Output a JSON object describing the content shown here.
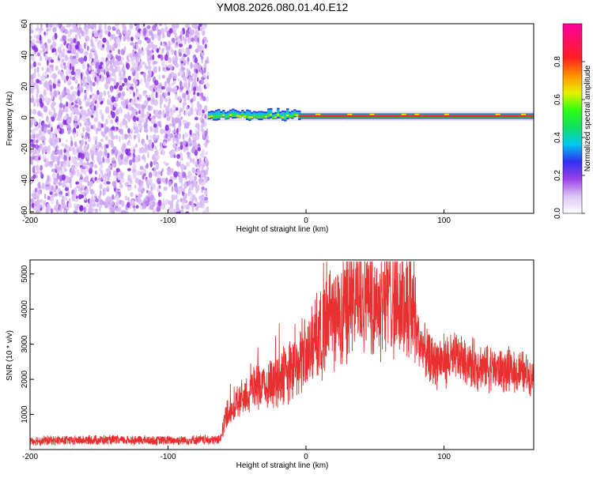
{
  "title": "YM08.2026.080.01.40.E12",
  "colors": {
    "snr_line": "#e83030",
    "noise_dark": "#8a2be2",
    "noise_light": "#d8b8f4"
  },
  "chart_data": [
    {
      "type": "heatmap",
      "title": "YM08.2026.080.01.40.E12",
      "xlabel": "Height of straight line (km)",
      "ylabel": "Frequency (Hz)",
      "xlim": [
        -200,
        165
      ],
      "ylim": [
        -61,
        60
      ],
      "xticks": [
        "-200",
        "-100",
        "0",
        "100"
      ],
      "xtick_values": [
        -200,
        -100,
        0,
        100
      ],
      "yticks": [
        "60",
        "40",
        "20",
        "0",
        "-20",
        "-40",
        "-60"
      ],
      "ytick_values": [
        60,
        40,
        20,
        0,
        -20,
        -40,
        -60
      ],
      "noise_region_x": [
        -200,
        -71
      ],
      "signal_region_x": [
        -71,
        165
      ],
      "signal_frequency_hz": 1,
      "colorbar": {
        "label": "Normalized spectral amplitude",
        "range": [
          0,
          1
        ],
        "ticks": [
          "0.0",
          "0.2",
          "0.4",
          "0.6",
          "0.8"
        ],
        "tick_values": [
          0,
          0.2,
          0.4,
          0.6,
          0.8
        ],
        "colormap": [
          "#ffffff",
          "#dcc4f4",
          "#9a40e8",
          "#3030f0",
          "#00c8f0",
          "#10e060",
          "#30ff10",
          "#e8f000",
          "#ff9000",
          "#ff2020",
          "#ff1060",
          "#ff00a0"
        ]
      }
    },
    {
      "type": "line",
      "xlabel": "Height of straight line (km)",
      "ylabel": "SNR (10 * v/v)",
      "xlim": [
        -200,
        165
      ],
      "ylim": [
        0,
        5400
      ],
      "xticks": [
        "-200",
        "-100",
        "0",
        "100"
      ],
      "xtick_values": [
        -200,
        -100,
        0,
        100
      ],
      "yticks": [
        "5000",
        "4000",
        "3000",
        "2000",
        "1000"
      ],
      "ytick_values": [
        5000,
        4000,
        3000,
        2000,
        1000
      ],
      "series": [
        {
          "x": [
            -200,
            -150,
            -100,
            -62,
            -58,
            -50,
            -40,
            -30,
            -20,
            -10,
            0,
            10,
            20,
            30,
            40,
            50,
            60,
            70,
            78,
            82,
            90,
            100,
            110,
            120,
            130,
            140,
            150,
            160,
            165
          ],
          "y": [
            250,
            270,
            260,
            280,
            1000,
            1300,
            1700,
            1800,
            2050,
            2300,
            2750,
            3200,
            3650,
            4100,
            4650,
            4200,
            4500,
            4000,
            4150,
            3050,
            2500,
            2550,
            2600,
            2450,
            2350,
            2300,
            2200,
            2150,
            2100
          ]
        }
      ]
    }
  ]
}
